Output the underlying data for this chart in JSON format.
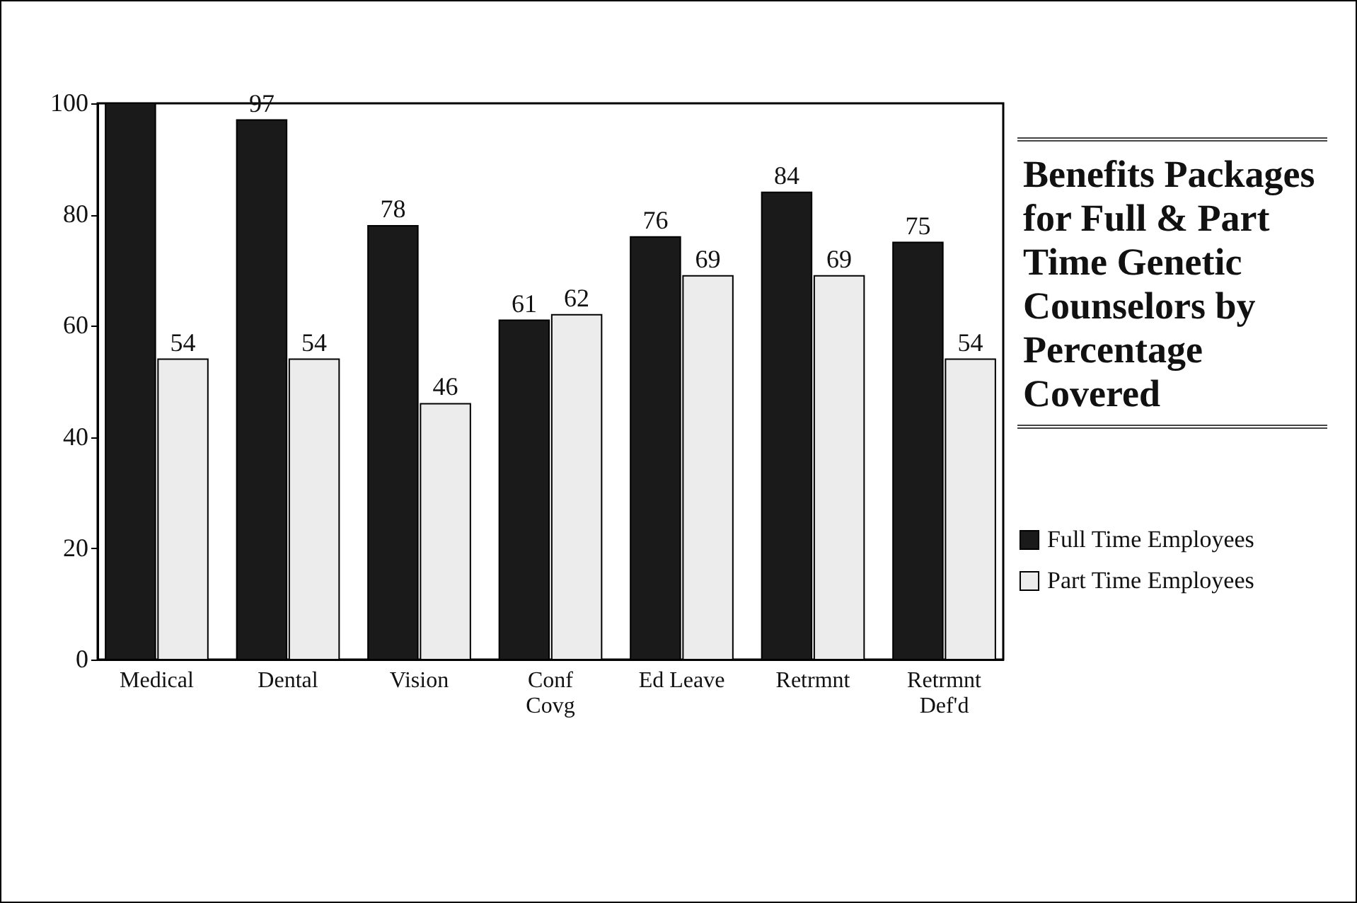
{
  "chart_data": {
    "type": "bar",
    "title": "Benefits Packages for Full & Part Time Genetic Counselors by Percentage Covered",
    "categories": [
      "Medical",
      "Dental",
      "Vision",
      "Conf\nCovg",
      "Ed Leave",
      "Retrmnt",
      "Retrmnt\nDef'd"
    ],
    "series": [
      {
        "name": "Full Time Employees",
        "color": "#1a1a1a",
        "values": [
          100,
          97,
          78,
          61,
          76,
          84,
          75
        ],
        "value_labels": [
          null,
          "97",
          "78",
          "61",
          "76",
          "84",
          "75"
        ]
      },
      {
        "name": "Part Time Employees",
        "color": "#ececec",
        "values": [
          54,
          54,
          46,
          62,
          69,
          69,
          54
        ],
        "value_labels": [
          "54",
          "54",
          "46",
          "62",
          "69",
          "69",
          "54"
        ]
      }
    ],
    "ylim": [
      0,
      100
    ],
    "yticks": [
      0,
      20,
      40,
      60,
      80,
      100
    ],
    "grid": false,
    "legend": "bottom right"
  }
}
